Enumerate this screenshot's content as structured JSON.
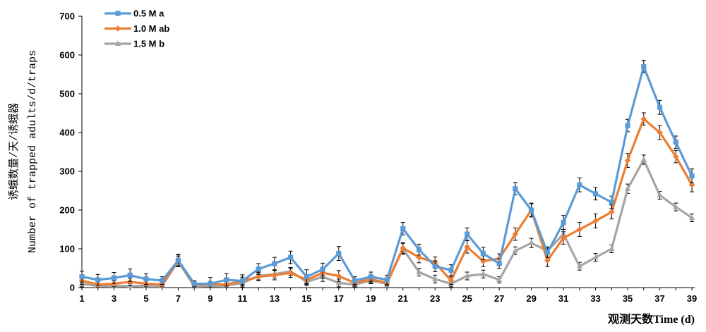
{
  "chart_data": {
    "type": "line",
    "title": "",
    "xlabel": "观测天数Time (d)",
    "ylabel_line1": "诱蛾数量/天/诱蛾器",
    "ylabel_line2": "Number of trapped adults/d/traps",
    "xlim": [
      1,
      39
    ],
    "ylim": [
      0,
      700
    ],
    "y_ticks": [
      "0",
      "100",
      "200",
      "300",
      "400",
      "500",
      "600",
      "700"
    ],
    "x_ticks": [
      "1",
      "3",
      "5",
      "7",
      "9",
      "11",
      "13",
      "15",
      "17",
      "19",
      "21",
      "23",
      "25",
      "27",
      "29",
      "31",
      "33",
      "35",
      "37",
      "39"
    ],
    "legend_position": "top-left",
    "grid": false,
    "x": [
      1,
      2,
      3,
      4,
      5,
      6,
      7,
      8,
      9,
      10,
      11,
      12,
      13,
      14,
      15,
      16,
      17,
      18,
      19,
      20,
      21,
      22,
      23,
      24,
      25,
      26,
      27,
      28,
      29,
      30,
      31,
      32,
      33,
      34,
      35,
      36,
      37,
      38,
      39
    ],
    "series": [
      {
        "name": "0.5 M a",
        "color": "#5B9BD5",
        "marker": "square",
        "values": [
          28,
          20,
          25,
          32,
          22,
          18,
          70,
          10,
          10,
          20,
          17,
          48,
          62,
          78,
          28,
          47,
          88,
          18,
          28,
          20,
          152,
          98,
          55,
          45,
          138,
          88,
          62,
          255,
          200,
          90,
          168,
          265,
          242,
          220,
          418,
          570,
          465,
          375,
          288
        ],
        "errors": [
          14,
          14,
          14,
          16,
          14,
          10,
          16,
          8,
          16,
          16,
          16,
          14,
          16,
          16,
          18,
          16,
          18,
          10,
          12,
          12,
          16,
          14,
          14,
          14,
          16,
          16,
          12,
          16,
          16,
          12,
          18,
          18,
          16,
          16,
          16,
          16,
          18,
          16,
          18
        ]
      },
      {
        "name": "1.0 M ab",
        "color": "#ED7D31",
        "marker": "diamond",
        "values": [
          18,
          8,
          10,
          15,
          10,
          8,
          70,
          7,
          8,
          8,
          17,
          28,
          32,
          38,
          20,
          38,
          30,
          12,
          22,
          12,
          102,
          78,
          65,
          18,
          105,
          68,
          75,
          138,
          200,
          70,
          128,
          150,
          172,
          195,
          328,
          435,
          400,
          338,
          265
        ],
        "errors": [
          10,
          8,
          8,
          10,
          8,
          6,
          14,
          6,
          8,
          8,
          10,
          10,
          12,
          12,
          12,
          14,
          14,
          8,
          10,
          8,
          14,
          14,
          14,
          10,
          16,
          14,
          12,
          16,
          18,
          16,
          16,
          18,
          18,
          18,
          18,
          16,
          18,
          16,
          18
        ]
      },
      {
        "name": "1.5 M b",
        "color": "#A5A5A5",
        "marker": "triangle",
        "values": [
          10,
          4,
          5,
          4,
          5,
          5,
          68,
          3,
          4,
          5,
          12,
          30,
          35,
          42,
          15,
          28,
          12,
          8,
          18,
          10,
          100,
          40,
          22,
          10,
          30,
          35,
          20,
          95,
          115,
          95,
          138,
          55,
          78,
          100,
          255,
          330,
          238,
          208,
          180
        ],
        "errors": [
          8,
          6,
          6,
          6,
          6,
          5,
          12,
          4,
          6,
          6,
          8,
          10,
          10,
          10,
          10,
          12,
          10,
          6,
          8,
          6,
          14,
          10,
          10,
          8,
          10,
          10,
          8,
          10,
          12,
          10,
          12,
          10,
          10,
          10,
          12,
          12,
          10,
          10,
          10
        ]
      }
    ]
  }
}
